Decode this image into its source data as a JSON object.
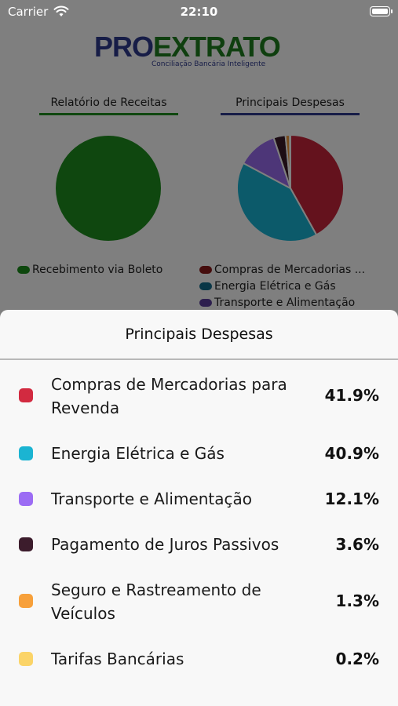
{
  "status_bar": {
    "carrier": "Carrier",
    "time": "22:10"
  },
  "logo": {
    "pro": "PRO",
    "ext": "EXTRATO",
    "tagline": "Conciliação Bancária Inteligente"
  },
  "receitas": {
    "title": "Relatório de Receitas",
    "legend": [
      {
        "label": "Recebimento via Boleto",
        "color": "#1a8f1a"
      }
    ]
  },
  "despesas": {
    "title": "Principais Despesas",
    "legend": [
      {
        "label": "Compras de Mercadorias ...",
        "color": "#8b1a1a"
      },
      {
        "label": "Energia Elétrica e Gás",
        "color": "#136c8c"
      },
      {
        "label": "Transporte e Alimentação",
        "color": "#5a3e9c"
      }
    ]
  },
  "chart_data": [
    {
      "type": "pie",
      "title": "Relatório de Receitas",
      "categories": [
        "Recebimento via Boleto"
      ],
      "values": [
        100
      ],
      "colors": [
        "#1f8f1f"
      ]
    },
    {
      "type": "pie",
      "title": "Principais Despesas",
      "categories": [
        "Compras de Mercadorias para Revenda",
        "Energia Elétrica e Gás",
        "Transporte e Alimentação",
        "Pagamento de Juros Passivos",
        "Seguro e Rastreamento de Veículos",
        "Tarifas Bancárias"
      ],
      "values": [
        41.9,
        40.9,
        12.1,
        3.6,
        1.3,
        0.2
      ],
      "colors": [
        "#c8243a",
        "#18b4d4",
        "#9b6cf0",
        "#3a1a28",
        "#f59a3a",
        "#f7d264"
      ]
    }
  ],
  "sheet": {
    "title": "Principais Despesas",
    "rows": [
      {
        "label": "Compras de Mercadorias para Revenda",
        "pct": "41.9%",
        "color": "#d22a40"
      },
      {
        "label": "Energia Elétrica e Gás",
        "pct": "40.9%",
        "color": "#1bb4d2"
      },
      {
        "label": "Transporte e Alimentação",
        "pct": "12.1%",
        "color": "#9c6cf4"
      },
      {
        "label": "Pagamento de Juros Passivos",
        "pct": "3.6%",
        "color": "#3c1c2c"
      },
      {
        "label": "Seguro e Rastreamento de Veículos",
        "pct": "1.3%",
        "color": "#f7a03a"
      },
      {
        "label": "Tarifas Bancárias",
        "pct": "0.2%",
        "color": "#fbd468"
      }
    ]
  }
}
